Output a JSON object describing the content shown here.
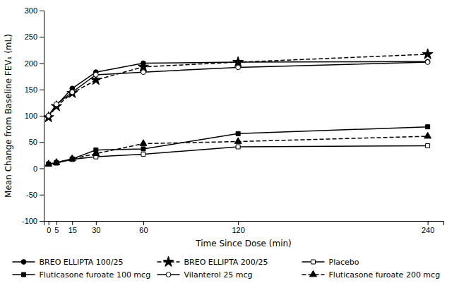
{
  "chart_data": {
    "type": "line",
    "x": [
      0,
      5,
      15,
      30,
      60,
      120,
      240
    ],
    "series": [
      {
        "name": "BREO ELLIPTA 100/25",
        "color": "#000000",
        "marker": "circle",
        "line_style": "solid",
        "values": [
          100,
          120,
          152,
          183,
          200,
          202,
          203
        ]
      },
      {
        "name": "BREO ELLIPTA 200/25",
        "color": "#000000",
        "marker": "star",
        "line_style": "dashed",
        "values": [
          97,
          118,
          143,
          168,
          193,
          202,
          217
        ]
      },
      {
        "name": "Placebo",
        "color": "#000000",
        "marker": "square-open",
        "line_style": "solid",
        "values": [
          8,
          10,
          17,
          22,
          27,
          41,
          43
        ]
      },
      {
        "name": "Fluticasone furoate 100 mcg",
        "color": "#000000",
        "marker": "square",
        "line_style": "solid",
        "values": [
          8,
          11,
          18,
          35,
          37,
          66,
          79
        ]
      },
      {
        "name": "Vilanterol 25 mcg",
        "color": "#000000",
        "marker": "circle-open",
        "line_style": "solid",
        "values": [
          100,
          122,
          145,
          178,
          183,
          192,
          202
        ]
      },
      {
        "name": "Fluticasone furoate 200 mcg",
        "color": "#000000",
        "marker": "triangle",
        "line_style": "dashed",
        "values": [
          8,
          11,
          18,
          28,
          47,
          51,
          61
        ]
      }
    ],
    "x_label": "Time Since Dose (min)",
    "y_label": "Mean Change from Baseline FEV₁ (mL)",
    "xlim": [
      -3,
      250
    ],
    "ylim": [
      -100,
      300
    ],
    "xticks": [
      0,
      5,
      15,
      30,
      60,
      120,
      240
    ],
    "yticks": [
      -100,
      -50,
      0,
      50,
      100,
      150,
      200,
      250,
      300
    ],
    "legend": "bottom"
  }
}
